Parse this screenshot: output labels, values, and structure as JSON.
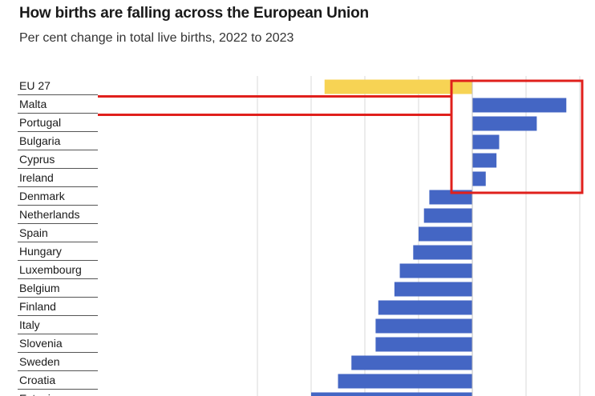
{
  "title": "How births are falling across the European Union",
  "subtitle": "Per cent change in total live births, 2022 to 2023",
  "chart_data": {
    "type": "bar",
    "orientation": "horizontal",
    "categories": [
      "EU 27",
      "Malta",
      "Portugal",
      "Bulgaria",
      "Cyprus",
      "Ireland",
      "Denmark",
      "Netherlands",
      "Spain",
      "Hungary",
      "Luxembourg",
      "Belgium",
      "Finland",
      "Italy",
      "Slovenia",
      "Sweden",
      "Croatia",
      "Estonia"
    ],
    "values": [
      -5.5,
      3.5,
      2.4,
      1.0,
      0.9,
      0.5,
      -1.6,
      -1.8,
      -2.0,
      -2.2,
      -2.7,
      -2.9,
      -3.5,
      -3.6,
      -3.6,
      -4.5,
      -5.0,
      -6.0
    ],
    "highlight_category": "EU 27",
    "colors": {
      "bars": "#4466c4",
      "highlight": "#f7d354",
      "annotation": "#e0201c",
      "grid": "#d9d9d9"
    },
    "xlim": [
      -8,
      4
    ],
    "grid": true,
    "annotation": "red box around positive bars with leader lines to Malta and Portugal labels"
  }
}
